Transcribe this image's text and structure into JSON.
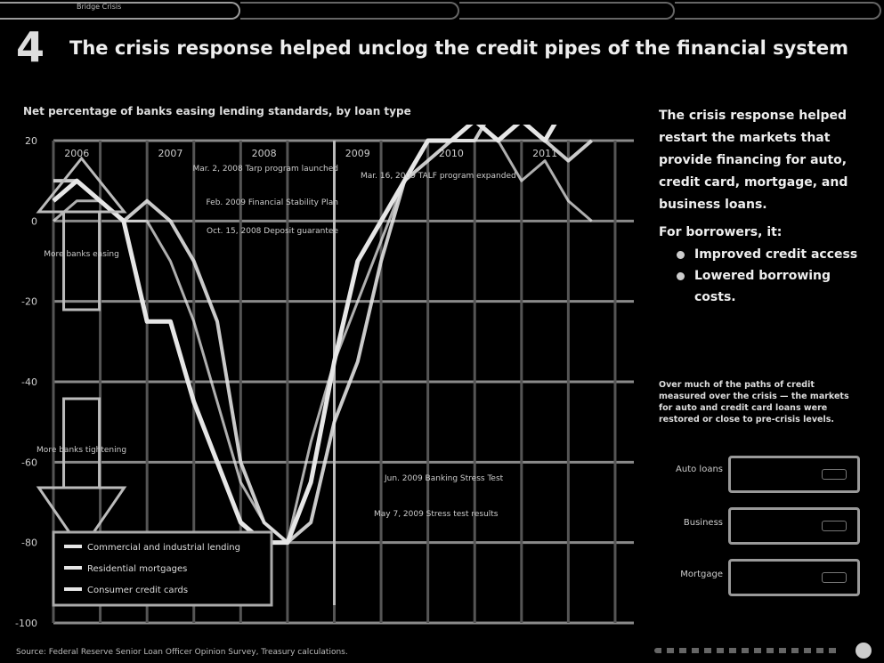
{
  "header": {
    "tab_label": "Bridge Crisis",
    "slide_number": "4",
    "title": "The crisis response helped unclog the credit pipes of the financial system"
  },
  "chart_caption": "Net percentage of banks easing lending standards, by loan type",
  "side": {
    "bullet1": "The crisis response helped restart the markets that provide financing for auto, credit card, mortgage, and business loans.",
    "bullet2": "For borrowers, it:",
    "sub_bullets": [
      "Improved credit access",
      "Lowered borrowing costs."
    ],
    "note": "Over much of the paths of credit measured over the crisis — the markets for auto and credit card loans were restored or close to pre-crisis levels."
  },
  "selectors": [
    {
      "label": "Auto loans"
    },
    {
      "label": "Business"
    },
    {
      "label": "Mortgage"
    }
  ],
  "source": "Source: Federal Reserve Senior Loan Officer Opinion Survey, Treasury calculations.",
  "colors": {
    "background": "#000000",
    "line": "#e6e6e6",
    "grid": "#8a8a8a"
  },
  "chart_data": {
    "type": "line",
    "title": "Net percentage of banks easing lending standards, by loan type",
    "year_labels": [
      "2006",
      "2007",
      "2008",
      "2009",
      "2010",
      "2011"
    ],
    "x": [
      2006.0,
      2006.25,
      2006.5,
      2006.75,
      2007.0,
      2007.25,
      2007.5,
      2007.75,
      2008.0,
      2008.25,
      2008.5,
      2008.75,
      2009.0,
      2009.25,
      2009.5,
      2009.75,
      2010.0,
      2010.25,
      2010.5,
      2010.75,
      2011.0,
      2011.25,
      2011.5,
      2011.75
    ],
    "series": [
      {
        "name": "Commercial and industrial lending",
        "values": [
          5,
          10,
          5,
          0,
          -25,
          -25,
          -45,
          -60,
          -75,
          -80,
          -80,
          -65,
          -35,
          -10,
          0,
          10,
          20,
          20,
          25,
          20,
          25,
          20,
          30,
          40
        ]
      },
      {
        "name": "Residential mortgages",
        "values": [
          10,
          10,
          5,
          0,
          5,
          0,
          -10,
          -25,
          -60,
          -75,
          -80,
          -75,
          -50,
          -35,
          -10,
          10,
          15,
          20,
          20,
          30,
          25,
          20,
          15,
          20
        ]
      },
      {
        "name": "Consumer credit cards",
        "values": [
          0,
          5,
          5,
          0,
          0,
          -10,
          -25,
          -45,
          -65,
          -75,
          -80,
          -55,
          -35,
          -20,
          -5,
          10,
          20,
          20,
          20,
          20,
          10,
          15,
          5,
          0
        ]
      }
    ],
    "ylim": [
      -100,
      20
    ],
    "yticks": [
      20,
      0,
      -20,
      -40,
      -60,
      -80,
      -100
    ],
    "ytick_labels": [
      "20",
      "0",
      "-20",
      "-40",
      "-60",
      "-80",
      "-100"
    ],
    "annotations": [
      "Mar. 2, 2008 Tarp program launched",
      "Feb. 2009 Financial Stability Plan",
      "Oct. 15, 2008 Deposit guarantee",
      "Mar. 16, 2009 TALF program expanded",
      "Jun. 2009 Banking Stress Test",
      "May 7, 2009 Stress test results"
    ],
    "arrow_labels": {
      "up": "More banks easing",
      "down": "More banks tightening"
    },
    "grid": true,
    "legend": "bottom-left"
  }
}
